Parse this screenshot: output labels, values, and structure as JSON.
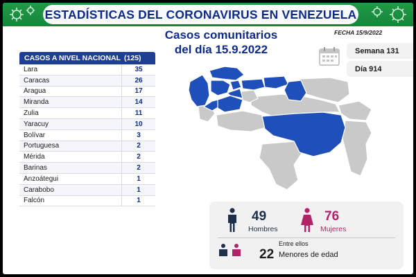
{
  "header": {
    "title": "ESTADÍSTICAS DEL CORONAVIRUS EN VENEZUELA",
    "date": "FECHA 15/9/2022"
  },
  "subtitle": {
    "line1": "Casos comunitarios",
    "line2": "del día 15.9.2022"
  },
  "table": {
    "header_label": "CASOS A NIVEL NACIONAL",
    "header_total": "(125)",
    "rows": [
      {
        "state": "Lara",
        "cases": "35"
      },
      {
        "state": "Caracas",
        "cases": "26"
      },
      {
        "state": "Aragua",
        "cases": "17"
      },
      {
        "state": "Miranda",
        "cases": "14"
      },
      {
        "state": "Zulia",
        "cases": "11"
      },
      {
        "state": "Yaracuy",
        "cases": "10"
      },
      {
        "state": "Bolívar",
        "cases": "3"
      },
      {
        "state": "Portuguesa",
        "cases": "2"
      },
      {
        "state": "Mérida",
        "cases": "2"
      },
      {
        "state": "Barinas",
        "cases": "2"
      },
      {
        "state": "Anzoátegui",
        "cases": "1"
      },
      {
        "state": "Carabobo",
        "cases": "1"
      },
      {
        "state": "Falcón",
        "cases": "1"
      }
    ]
  },
  "info": {
    "week": "Semana 131",
    "day": "Día 914"
  },
  "stats": {
    "men_count": "49",
    "men_label": "Hombres",
    "women_count": "76",
    "women_label": "Mujeres",
    "minors_prefix": "Entre ellos",
    "minors_count": "22",
    "minors_label": "Menores de edad"
  },
  "colors": {
    "header_green": "#1f9a46",
    "title_blue": "#0f2b8a",
    "affected_state": "#1f4fb8",
    "unaffected_state": "#c9c9c9",
    "men_color": "#1d2f4a",
    "women_color": "#b0246a"
  },
  "icons": [
    "virus-icon",
    "calendar-icon",
    "man-icon",
    "woman-icon",
    "children-icon"
  ]
}
